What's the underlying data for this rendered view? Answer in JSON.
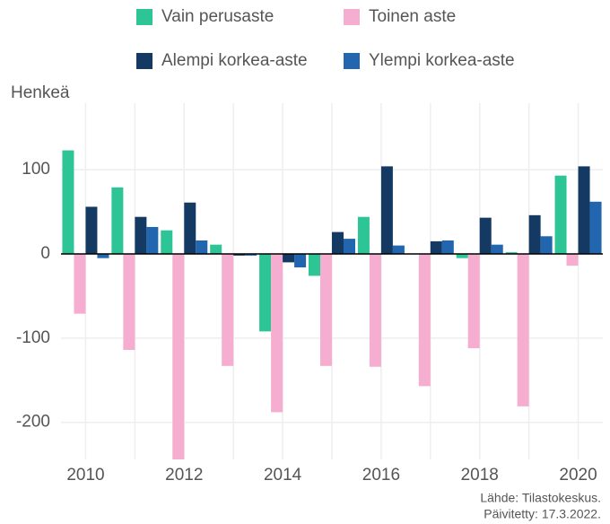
{
  "chart_data": {
    "type": "bar",
    "y_label": "Henkeä",
    "source": "Lähde: Tilastokeskus.",
    "updated": "Päivitetty: 17.3.2022.",
    "categories": [
      "2010",
      null,
      "2012",
      null,
      "2014",
      null,
      "2016",
      null,
      "2018",
      null,
      "2020"
    ],
    "series": [
      {
        "name": "Vain perusaste",
        "color": "#2dc595",
        "values": [
          123,
          79,
          28,
          11,
          -92,
          -26,
          44,
          0,
          -5,
          2,
          93
        ]
      },
      {
        "name": "Toinen aste",
        "color": "#f5aecf",
        "values": [
          -71,
          -114,
          -244,
          -133,
          -188,
          -133,
          -134,
          -157,
          -112,
          -181,
          -14
        ]
      },
      {
        "name": "Alempi korkea-aste",
        "color": "#143a63",
        "values": [
          56,
          44,
          61,
          -2,
          -10,
          26,
          104,
          15,
          43,
          46,
          104
        ]
      },
      {
        "name": "Ylempi korkea-aste",
        "color": "#2166ae",
        "values": [
          -5,
          32,
          16,
          -2,
          -16,
          18,
          10,
          16,
          11,
          21,
          62
        ]
      }
    ],
    "ylim": [
      -244,
      179
    ],
    "yticks": [
      -200,
      -100,
      0,
      100
    ],
    "grid": true
  }
}
